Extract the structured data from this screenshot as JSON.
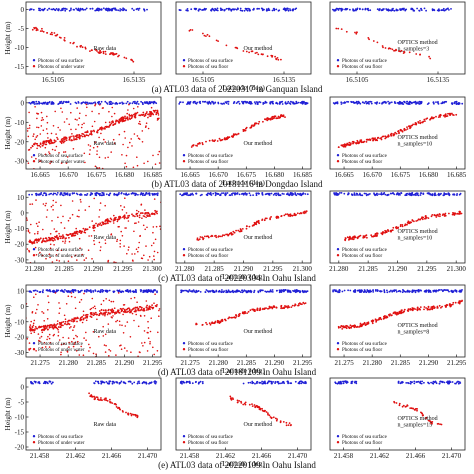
{
  "figure": {
    "point_colors": {
      "surface": "#1f1fd6",
      "floor": "#e01010"
    }
  },
  "chart_data": [
    {
      "id": "a",
      "type": "scatter",
      "caption": "(a) ATL03 data of 20220317 in Ganquan Island",
      "xlabel": "Latitude (deg)",
      "ylabel": "Height (m)",
      "xticks": [
        "16.5105",
        "16.5135"
      ],
      "yticks": [
        {
          "label": "0",
          "value": 0
        },
        {
          "label": "-5",
          "value": -5
        },
        {
          "label": "-10",
          "value": -10
        },
        {
          "label": "-15",
          "value": -15
        }
      ],
      "xlim": [
        16.5095,
        16.5145
      ],
      "ylim": [
        -17,
        2
      ],
      "panels": [
        {
          "legend_title": "Raw data",
          "legend_title_lines": [],
          "legend": [
            "Photons of sea surface",
            "Photons of under water"
          ],
          "surface": {
            "x": [
              16.5096,
              16.514
            ],
            "y": 0,
            "density": 130
          },
          "floor": {
            "x": [
              16.5097,
              16.5135
            ],
            "y": [
              -5,
              -14
            ],
            "density": 70,
            "noise": 0.15
          },
          "show_xticks": true,
          "show_yticks": true,
          "show_xlabel": false,
          "show_ylabel": true
        },
        {
          "legend_title": "Our method",
          "legend_title_lines": [],
          "legend": [
            "Photons of sea surface",
            "Photons of sea floor"
          ],
          "surface": {
            "x": [
              16.5096,
              16.514
            ],
            "y": 0,
            "density": 130
          },
          "floor": {
            "x": [
              16.5097,
              16.5135
            ],
            "y": [
              -5,
              -14
            ],
            "density": 35,
            "noise": 0
          },
          "show_xticks": true,
          "show_yticks": false,
          "show_xlabel": true,
          "show_ylabel": false
        },
        {
          "legend_title": "",
          "legend_title_lines": [
            "OPTICS method",
            "n_samples=3"
          ],
          "legend": [
            "Photons of sea surface",
            "Photons of sea floor"
          ],
          "surface": {
            "x": [
              16.5096,
              16.514
            ],
            "y": 0,
            "density": 130
          },
          "floor": {
            "x": [
              16.5097,
              16.5135
            ],
            "y": [
              -5,
              -14
            ],
            "density": 35,
            "noise": 0
          },
          "show_xticks": true,
          "show_yticks": false,
          "show_xlabel": false,
          "show_ylabel": false
        }
      ]
    },
    {
      "id": "b",
      "type": "scatter",
      "caption": "(b) ATL03 data of 20181116 in Dongdao Island",
      "xlabel": "Latitude (deg)",
      "ylabel": "Height (m)",
      "xticks": [
        "16.665",
        "16.670",
        "16.675",
        "16.680",
        "16.685"
      ],
      "yticks": [
        {
          "label": "0",
          "value": 0
        },
        {
          "label": "-10",
          "value": -10
        },
        {
          "label": "-20",
          "value": -20
        },
        {
          "label": "-30",
          "value": -30
        }
      ],
      "xlim": [
        16.6625,
        16.6865
      ],
      "ylim": [
        -34,
        3
      ],
      "panels": [
        {
          "legend_title": "Raw data",
          "legend_title_lines": [],
          "legend": [
            "Photons of sea surface",
            "Photons of under water"
          ],
          "surface": {
            "x": [
              16.663,
              16.686
            ],
            "y": 0,
            "density": 150
          },
          "floor": {
            "x": [
              16.663,
              16.686
            ],
            "y": [
              -24,
              -4
            ],
            "density": 220,
            "noise": 1.2
          },
          "show_xticks": true,
          "show_yticks": true,
          "show_xlabel": false,
          "show_ylabel": true
        },
        {
          "legend_title": "Our method",
          "legend_title_lines": [],
          "legend": [
            "Photons of sea surface",
            "Photons of sea floor"
          ],
          "surface": {
            "x": [
              16.663,
              16.686
            ],
            "y": 0,
            "density": 150
          },
          "floor": {
            "x": [
              16.665,
              16.682
            ],
            "y": [
              -24,
              -6
            ],
            "density": 110,
            "noise": 0
          },
          "show_xticks": true,
          "show_yticks": false,
          "show_xlabel": true,
          "show_ylabel": false
        },
        {
          "legend_title": "",
          "legend_title_lines": [
            "OPTICS method",
            "n_samples=10"
          ],
          "legend": [
            "Photons of sea surface",
            "Photons of sea floor"
          ],
          "surface": {
            "x": [
              16.663,
              16.686
            ],
            "y": 0,
            "density": 150
          },
          "floor": {
            "x": [
              16.664,
              16.685
            ],
            "y": [
              -24,
              -5
            ],
            "density": 170,
            "noise": 0.12
          },
          "show_xticks": true,
          "show_yticks": false,
          "show_xlabel": false,
          "show_ylabel": false
        }
      ]
    },
    {
      "id": "c",
      "type": "scatter",
      "caption": "(c) ATL03 data of 20220304 in Oahu Island",
      "xlabel": "Latitude (deg)",
      "ylabel": "Height (m)",
      "xticks": [
        "21.280",
        "21.285",
        "21.290",
        "21.295",
        "21.300"
      ],
      "yticks": [
        {
          "label": "10",
          "value": 10
        },
        {
          "label": "0",
          "value": 0
        },
        {
          "label": "-10",
          "value": -10
        },
        {
          "label": "-20",
          "value": -20
        },
        {
          "label": "-30",
          "value": -30
        }
      ],
      "xlim": [
        21.2785,
        21.3015
      ],
      "ylim": [
        -32,
        14
      ],
      "panels": [
        {
          "legend_title": "Raw data",
          "legend_title_lines": [],
          "legend": [
            "Photons of sea surface",
            "Photons of under water"
          ],
          "surface": {
            "x": [
              21.279,
              21.301
            ],
            "y": 12,
            "density": 150
          },
          "floor": {
            "x": [
              21.279,
              21.301
            ],
            "y": [
              -20,
              2
            ],
            "density": 210,
            "noise": 1.0
          },
          "show_xticks": true,
          "show_yticks": true,
          "show_xlabel": false,
          "show_ylabel": true
        },
        {
          "legend_title": "Our method",
          "legend_title_lines": [],
          "legend": [
            "Photons of sea surface",
            "Photons of sea floor"
          ],
          "surface": {
            "x": [
              21.279,
              21.301
            ],
            "y": 12,
            "density": 150
          },
          "floor": {
            "x": [
              21.282,
              21.301
            ],
            "y": [
              -18,
              2
            ],
            "density": 110,
            "noise": 0
          },
          "show_xticks": true,
          "show_yticks": false,
          "show_xlabel": true,
          "show_ylabel": false
        },
        {
          "legend_title": "",
          "legend_title_lines": [
            "OPTICS method",
            "n_samples=10"
          ],
          "legend": [
            "Photons of sea surface",
            "Photons of sea floor"
          ],
          "surface": {
            "x": [
              21.279,
              21.301
            ],
            "y": 12,
            "density": 150
          },
          "floor": {
            "x": [
              21.281,
              21.301
            ],
            "y": [
              -18,
              2
            ],
            "density": 160,
            "noise": 0.12
          },
          "show_xticks": true,
          "show_yticks": false,
          "show_xlabel": false,
          "show_ylabel": false
        }
      ]
    },
    {
      "id": "d",
      "type": "scatter",
      "caption": "(d) ATL03 data of 20181209 in Oahu Island",
      "xlabel": "Latitude (deg)",
      "ylabel": "Height (m)",
      "xticks": [
        "21.275",
        "21.280",
        "21.285",
        "21.290",
        "21.295"
      ],
      "yticks": [
        {
          "label": "10",
          "value": 10
        },
        {
          "label": "0",
          "value": 0
        },
        {
          "label": "-10",
          "value": -10
        },
        {
          "label": "-20",
          "value": -20
        },
        {
          "label": "-30",
          "value": -30
        }
      ],
      "xlim": [
        21.2725,
        21.2965
      ],
      "ylim": [
        -33,
        14
      ],
      "panels": [
        {
          "legend_title": "Raw data",
          "legend_title_lines": [],
          "legend": [
            "Photons of sea surface",
            "Photons of under water"
          ],
          "surface": {
            "x": [
              21.273,
              21.296
            ],
            "y": 10,
            "density": 170
          },
          "floor": {
            "x": [
              21.273,
              21.296
            ],
            "y": [
              -15,
              2
            ],
            "density": 240,
            "noise": 1.2
          },
          "show_xticks": true,
          "show_yticks": true,
          "show_xlabel": false,
          "show_ylabel": true
        },
        {
          "legend_title": "Our method",
          "legend_title_lines": [],
          "legend": [
            "Photons of sea surface",
            "Photons of sea floor"
          ],
          "surface": {
            "x": [
              21.273,
              21.296
            ],
            "y": 10,
            "density": 170
          },
          "floor": {
            "x": [
              21.276,
              21.296
            ],
            "y": [
              -12,
              4
            ],
            "density": 130,
            "noise": 0
          },
          "show_xticks": true,
          "show_yticks": false,
          "show_xlabel": true,
          "show_ylabel": false
        },
        {
          "legend_title": "",
          "legend_title_lines": [
            "OPTICS method",
            "n_samples=8"
          ],
          "legend": [
            "Photons of sea surface",
            "Photons of sea floor"
          ],
          "surface": {
            "x": [
              21.273,
              21.296
            ],
            "y": 10,
            "density": 170
          },
          "floor": {
            "x": [
              21.274,
              21.296
            ],
            "y": [
              -14,
              4
            ],
            "density": 200,
            "noise": 0.2
          },
          "show_xticks": true,
          "show_yticks": false,
          "show_xlabel": false,
          "show_ylabel": false
        }
      ]
    },
    {
      "id": "e",
      "type": "scatter",
      "caption": "(e) ATL03 data of 20220109 in Oahu Island",
      "xlabel": "Latitude (deg)",
      "ylabel": "Height (m)",
      "xticks": [
        "21.458",
        "21.462",
        "21.466",
        "21.470"
      ],
      "yticks": [
        {
          "label": "0",
          "value": 0
        },
        {
          "label": "-5",
          "value": -5
        },
        {
          "label": "-10",
          "value": -10
        },
        {
          "label": "-15",
          "value": -15
        },
        {
          "label": "-20",
          "value": -20
        }
      ],
      "xlim": [
        21.4565,
        21.4715
      ],
      "ylim": [
        -21,
        3
      ],
      "panels": [
        {
          "legend_title": "Raw data",
          "legend_title_lines": [],
          "legend": [
            "Photons of sea surface",
            "Photons of under water"
          ],
          "surface": {
            "segments": [
              [
                21.457,
                21.4595
              ],
              [
                21.464,
                21.471
              ]
            ],
            "y": 1.5,
            "density": 130
          },
          "floor": {
            "x": [
              21.4635,
              21.469
            ],
            "y": [
              -2,
              -10
            ],
            "density": 60,
            "noise": 0.1
          },
          "show_xticks": true,
          "show_yticks": true,
          "show_xlabel": false,
          "show_ylabel": true
        },
        {
          "legend_title": "Our method",
          "legend_title_lines": [],
          "legend": [
            "Photons of sea surface",
            "Photons of sea floor"
          ],
          "surface": {
            "segments": [
              [
                21.457,
                21.4595
              ],
              [
                21.464,
                21.471
              ]
            ],
            "y": 1.5,
            "density": 130
          },
          "floor": {
            "x": [
              21.4625,
              21.4695
            ],
            "y": [
              -3,
              -13
            ],
            "density": 60,
            "noise": 0
          },
          "show_xticks": true,
          "show_yticks": false,
          "show_xlabel": true,
          "show_ylabel": false
        },
        {
          "legend_title": "",
          "legend_title_lines": [
            "OPTICS method",
            "n_samples=15"
          ],
          "legend": [
            "Photons of sea surface",
            "Photons of sea floor"
          ],
          "surface": {
            "segments": [
              [
                21.457,
                21.4595
              ],
              [
                21.464,
                21.471
              ]
            ],
            "y": 1.5,
            "density": 130
          },
          "floor": {
            "x": [
              21.4635,
              21.469
            ],
            "y": [
              -4,
              -13
            ],
            "density": 40,
            "noise": 0
          },
          "show_xticks": true,
          "show_yticks": false,
          "show_xlabel": false,
          "show_ylabel": false
        }
      ]
    }
  ]
}
